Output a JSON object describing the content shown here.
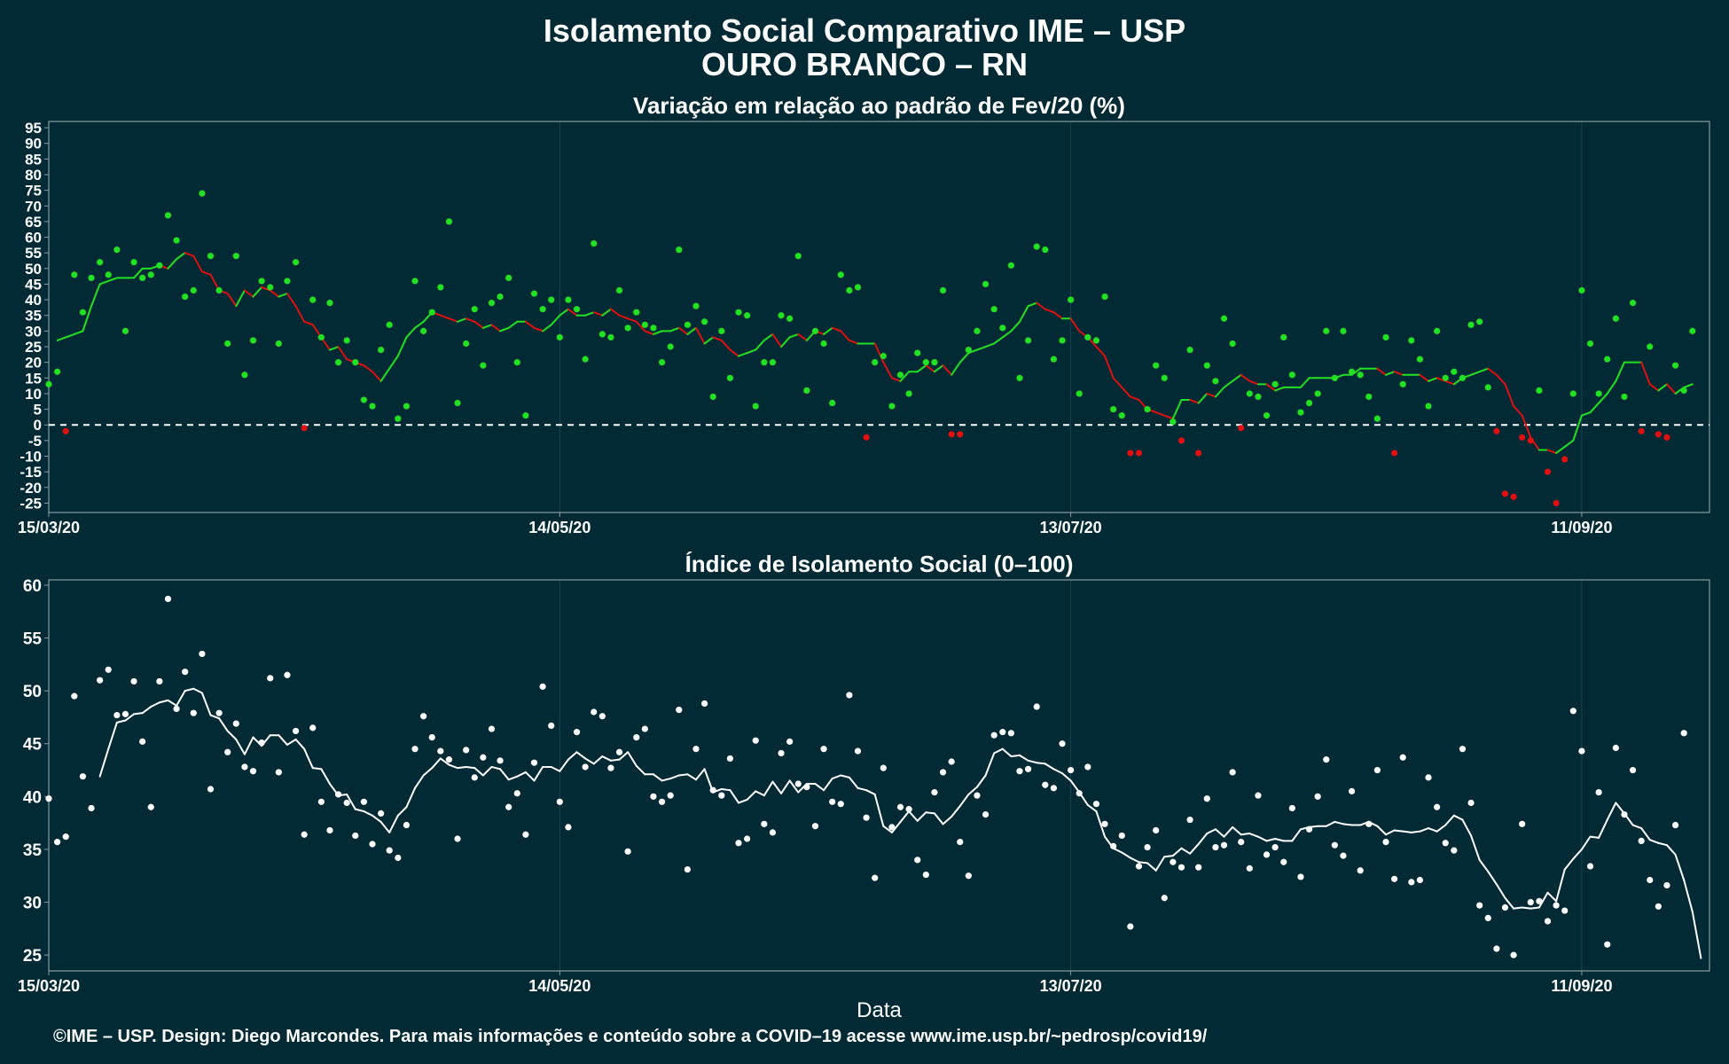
{
  "title_line1": "Isolamento Social Comparativo IME – USP",
  "title_line2": "OURO BRANCO – RN",
  "footer": "©IME – USP. Design: Diego Marcondes. Para mais informações e conteúdo sobre a COVID–19 acesse www.ime.usp.br/~pedrosp/covid19/",
  "colors": {
    "background": "#012a35",
    "above_ref": "#22e022",
    "below_ref": "#e01010",
    "index": "#ffffff",
    "zero_line": "#ffffff"
  },
  "chart_data": [
    {
      "type": "scatter",
      "title": "Variação em relação ao padrão de Fev/20 (%)",
      "xlabel": "",
      "ylabel": "",
      "x_ticks": [
        "15/03/20",
        "14/05/20",
        "13/07/20",
        "11/09/20"
      ],
      "x_range_days": [
        0,
        195
      ],
      "ylim": [
        -28,
        97
      ],
      "y_ticks": [
        -25,
        -20,
        -15,
        -10,
        -5,
        0,
        5,
        10,
        15,
        20,
        25,
        30,
        35,
        40,
        45,
        50,
        55,
        60,
        65,
        70,
        75,
        80,
        85,
        90,
        95
      ],
      "reference_line": 0,
      "series": [
        {
          "points": [
            13,
            17,
            -2,
            48,
            36,
            47,
            52,
            48,
            56,
            30,
            52,
            47,
            48,
            51,
            67,
            59,
            41,
            43,
            74,
            54,
            43,
            26,
            54,
            16,
            27,
            46,
            44,
            26,
            46,
            52,
            -1,
            40,
            28,
            39,
            20,
            27,
            20,
            8,
            6,
            24,
            32,
            2,
            6,
            46,
            30,
            36,
            44,
            65,
            7,
            26,
            37,
            19,
            39,
            41,
            47,
            20,
            3,
            42,
            37,
            40,
            28,
            40,
            37,
            21,
            58,
            29,
            28,
            43,
            31,
            36,
            32,
            31,
            20,
            25,
            56,
            32,
            38,
            33,
            9,
            30,
            15,
            36,
            35,
            6,
            20,
            20,
            35,
            34,
            54,
            11,
            30,
            26,
            7,
            48,
            43,
            44,
            -4,
            20,
            22,
            6,
            16,
            10,
            23,
            20,
            20,
            43,
            -3,
            -3,
            24,
            30,
            45,
            37,
            31,
            51,
            15,
            27,
            57,
            56,
            21,
            27,
            40,
            10,
            28,
            27,
            41,
            5,
            3,
            -9,
            -9,
            5,
            19,
            15,
            1,
            -5,
            24,
            -9,
            19,
            14,
            34,
            26,
            -1,
            10,
            9,
            3,
            13,
            28,
            16,
            4,
            7,
            10,
            30,
            15,
            30,
            17,
            16,
            9,
            2,
            28,
            -9,
            13,
            27,
            21,
            6,
            30,
            15,
            17,
            15,
            32,
            33,
            12,
            -2,
            -22,
            -23,
            -4,
            -5,
            11,
            -15,
            -25,
            -11,
            10,
            43,
            26,
            10,
            21,
            34,
            9,
            39,
            -2,
            25,
            -3,
            -4,
            19,
            11,
            30
          ]
        },
        {
          "moving_average": [
            27,
            28,
            29,
            30,
            38,
            45,
            46,
            47,
            47,
            47,
            50,
            50,
            51,
            50,
            53,
            55,
            54,
            49,
            48,
            43,
            42,
            38,
            43,
            41,
            44,
            43,
            41,
            42,
            38,
            33,
            32,
            28,
            24,
            25,
            21,
            20,
            19,
            17,
            14,
            18,
            22,
            28,
            31,
            33,
            36,
            35,
            34,
            33,
            34,
            33,
            31,
            32,
            30,
            31,
            33,
            33,
            31,
            30,
            32,
            35,
            37,
            35,
            35,
            36,
            35,
            37,
            35,
            34,
            33,
            30,
            29,
            30,
            30,
            31,
            29,
            31,
            26,
            28,
            27,
            24,
            22,
            23,
            24,
            27,
            29,
            25,
            28,
            29,
            27,
            30,
            29,
            31,
            30,
            27,
            26,
            26,
            26,
            20,
            15,
            14,
            17,
            17,
            19,
            17,
            19,
            16,
            20,
            23,
            24,
            25,
            26,
            28,
            30,
            33,
            38,
            39,
            37,
            36,
            34,
            34,
            30,
            28,
            25,
            22,
            15,
            12,
            9,
            8,
            5,
            4,
            3,
            2,
            8,
            8,
            7,
            10,
            9,
            12,
            14,
            16,
            14,
            13,
            13,
            11,
            12,
            12,
            12,
            15,
            15,
            15,
            15,
            16,
            16,
            18,
            18,
            18,
            16,
            17,
            16,
            16,
            16,
            14,
            15,
            14,
            13,
            15,
            16,
            17,
            18,
            16,
            13,
            6,
            3,
            -4,
            -8,
            -8,
            -9,
            -7,
            -5,
            3,
            4,
            7,
            10,
            14,
            20,
            20,
            20,
            13,
            11,
            13,
            10,
            12,
            13
          ]
        }
      ]
    },
    {
      "type": "scatter",
      "title": "Índice de Isolamento Social (0–100)",
      "xlabel": "Data",
      "ylabel": "",
      "x_ticks": [
        "15/03/20",
        "14/05/20",
        "13/07/20",
        "11/09/20"
      ],
      "x_range_days": [
        0,
        195
      ],
      "ylim": [
        23.5,
        60.5
      ],
      "y_ticks": [
        25,
        30,
        35,
        40,
        45,
        50,
        55,
        60
      ],
      "series": [
        {
          "points": [
            39.8,
            35.7,
            36.2,
            49.5,
            41.9,
            38.9,
            51,
            52,
            47.7,
            47.8,
            50.9,
            45.2,
            39,
            50.9,
            58.7,
            48.3,
            51.8,
            47.9,
            53.5,
            40.7,
            47.9,
            44.2,
            46.9,
            42.8,
            42.4,
            45.1,
            51.2,
            42.3,
            51.5,
            46.2,
            36.4,
            46.5,
            39.5,
            36.8,
            40.2,
            39.4,
            36.3,
            39.5,
            35.5,
            38.4,
            34.9,
            34.2,
            37.3,
            44.5,
            47.6,
            45.6,
            44.3,
            43.5,
            36,
            44.4,
            41.8,
            43.7,
            46.4,
            43.4,
            39,
            40.3,
            36.4,
            43.2,
            50.4,
            46.7,
            39.5,
            37.1,
            46.1,
            42.8,
            48,
            47.6,
            42.7,
            44.2,
            34.8,
            45.6,
            46.4,
            40,
            39.5,
            40.1,
            48.2,
            33.1,
            44.5,
            48.8,
            40.6,
            40.1,
            43.6,
            35.6,
            36,
            45.3,
            37.4,
            36.6,
            44.1,
            45.2,
            41.2,
            40.9,
            37.2,
            44.5,
            39.5,
            39.3,
            49.6,
            44.3,
            38,
            32.3,
            42.7,
            37.1,
            39,
            38.8,
            34,
            32.6,
            40.4,
            42.3,
            43.3,
            35.7,
            32.5,
            40.1,
            38.3,
            45.8,
            46.1,
            46,
            42.4,
            42.6,
            48.5,
            41.1,
            40.8,
            45,
            42.5,
            40.3,
            42.8,
            39.3,
            37.4,
            35.3,
            36.3,
            27.7,
            33.4,
            35.2,
            36.8,
            30.4,
            33.8,
            33.3,
            37.8,
            33.3,
            39.8,
            35.2,
            35.4,
            42.3,
            35.7,
            33.2,
            40.1,
            34.5,
            35.2,
            33.8,
            38.9,
            32.4,
            36.9,
            40,
            43.5,
            35.4,
            34.4,
            40.5,
            33,
            37.4,
            42.5,
            35.7,
            32.2,
            43.7,
            31.9,
            32.1,
            41.8,
            39,
            35.6,
            34.9,
            44.5,
            39.4,
            29.7,
            28.5,
            25.6,
            29.5,
            25,
            37.4,
            30,
            30.1,
            28.2,
            29.7,
            29.2,
            48.1,
            44.3,
            33.4,
            40.4,
            26,
            44.6,
            38.3,
            42.5,
            35.8,
            32.1,
            29.6,
            31.6,
            37.3,
            46
          ]
        },
        {
          "moving_average": [
            41.9,
            44.5,
            47,
            47.2,
            47.8,
            47.9,
            48.5,
            48.9,
            49.1,
            48.6,
            50,
            50.2,
            49.8,
            47.7,
            47.4,
            46.2,
            45.4,
            44,
            45.6,
            44.8,
            45.8,
            45.8,
            44.9,
            45.4,
            44.5,
            42.7,
            42.6,
            41.2,
            40.1,
            40.2,
            38.8,
            38.6,
            38.2,
            37.6,
            36.6,
            38.2,
            39,
            40.8,
            42,
            42.7,
            43.6,
            43,
            42.7,
            42.8,
            42.7,
            42,
            42.8,
            42.6,
            41.6,
            41.9,
            42.3,
            41.5,
            42.8,
            42.8,
            42.4,
            43.5,
            44.2,
            43.6,
            43.1,
            43.8,
            43.4,
            43.5,
            44.2,
            42.9,
            42.1,
            42.1,
            41.5,
            41.7,
            42,
            42.1,
            41.6,
            42.6,
            40.4,
            40.7,
            40.6,
            39.4,
            39.7,
            40.5,
            40.1,
            41.4,
            40.3,
            41.5,
            40.4,
            41.2,
            41.2,
            40.6,
            41.7,
            42,
            41.8,
            40.8,
            40.6,
            40.2,
            37.2,
            36.6,
            37.6,
            38.6,
            37.7,
            38.5,
            38.4,
            37.4,
            38.1,
            39.1,
            40.2,
            40.9,
            42,
            44.1,
            44.5,
            43.8,
            43.9,
            43.4,
            43.2,
            43.1,
            42.6,
            42.2,
            41.5,
            40.4,
            39.2,
            38.6,
            36.2,
            35.1,
            34.7,
            34.2,
            33.8,
            33.7,
            33,
            34.3,
            34.4,
            35.1,
            34.6,
            35.5,
            36.5,
            36.9,
            36.2,
            37.1,
            36.4,
            36.5,
            36.2,
            35.8,
            36,
            35.8,
            35.8,
            36.9,
            37.1,
            37.2,
            37.2,
            37.6,
            37.4,
            37.3,
            37.3,
            37.6,
            37.2,
            36.4,
            36.8,
            36.7,
            36.6,
            36.7,
            37,
            36.7,
            37.3,
            38.2,
            37.8,
            36.3,
            34,
            32.9,
            31.7,
            30.4,
            29.4,
            29.5,
            29.4,
            29.5,
            30.9,
            30.1,
            33.1,
            34.1,
            35,
            36.2,
            36.1,
            37.8,
            39.4,
            38.4,
            37.3,
            37,
            35.9,
            35.6,
            35.4,
            34.5,
            32.1,
            29.1,
            24.7
          ]
        }
      ]
    }
  ]
}
